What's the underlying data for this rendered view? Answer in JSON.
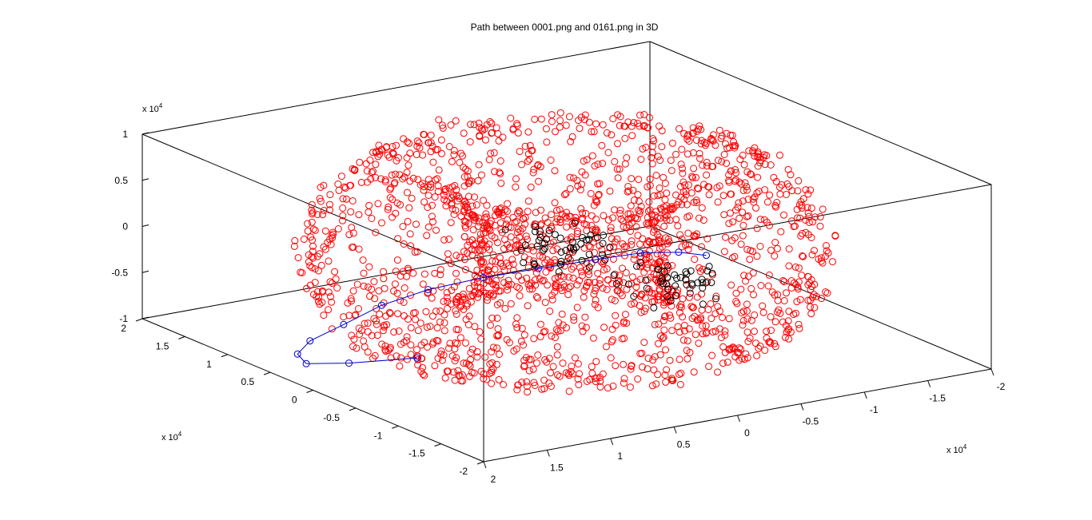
{
  "chart_data": {
    "type": "scatter",
    "title": "Path between 0001.png and 0161.png in 3D",
    "xlabel": "",
    "ylabel": "",
    "zlabel": "",
    "exponent_label": {
      "base": "x 10",
      "power": "4"
    },
    "xlim": [
      -2,
      2
    ],
    "ylim": [
      -2,
      2
    ],
    "zlim": [
      -1,
      1
    ],
    "x_ticks": [
      "-2",
      "-1.5",
      "-1",
      "-0.5",
      "0",
      "0.5",
      "1",
      "1.5",
      "2"
    ],
    "y_ticks": [
      "-2",
      "-1.5",
      "-1",
      "-0.5",
      "0",
      "0.5",
      "1",
      "1.5",
      "2"
    ],
    "z_ticks": [
      "-1",
      "-0.5",
      "0",
      "0.5",
      "1"
    ],
    "grid": false,
    "series": [
      {
        "marker": "circle",
        "color": "#ff0000",
        "distribution": "torus",
        "major_radius": 1.15,
        "minor_radius": 0.55,
        "z_half_height": 0.9,
        "count": 1900
      },
      {
        "marker": "circle",
        "color": "#000000",
        "cluster_centers": [
          [
            -0.55,
            0.95,
            -0.45
          ],
          [
            -1.05,
            0.35,
            -0.75
          ]
        ],
        "count": 90
      },
      {
        "marker": "circle-line",
        "color": "#0000cc",
        "path": [
          [
            1.55,
            -0.55,
            -0.55
          ],
          [
            1.75,
            -0.05,
            -0.75
          ],
          [
            1.75,
            0.45,
            -0.95
          ],
          [
            1.55,
            0.85,
            -1.05
          ],
          [
            1.25,
            1.15,
            -1.1
          ],
          [
            0.85,
            1.35,
            -1.1
          ],
          [
            0.45,
            1.5,
            -1.05
          ],
          [
            0.05,
            1.55,
            -1.0
          ],
          [
            -0.35,
            1.5,
            -0.95
          ],
          [
            -0.65,
            1.3,
            -0.85
          ],
          [
            -0.9,
            1.0,
            -0.7
          ],
          [
            -1.05,
            0.7,
            -0.55
          ],
          [
            -1.15,
            0.4,
            -0.45
          ],
          [
            -1.2,
            0.15,
            -0.4
          ]
        ]
      }
    ]
  }
}
